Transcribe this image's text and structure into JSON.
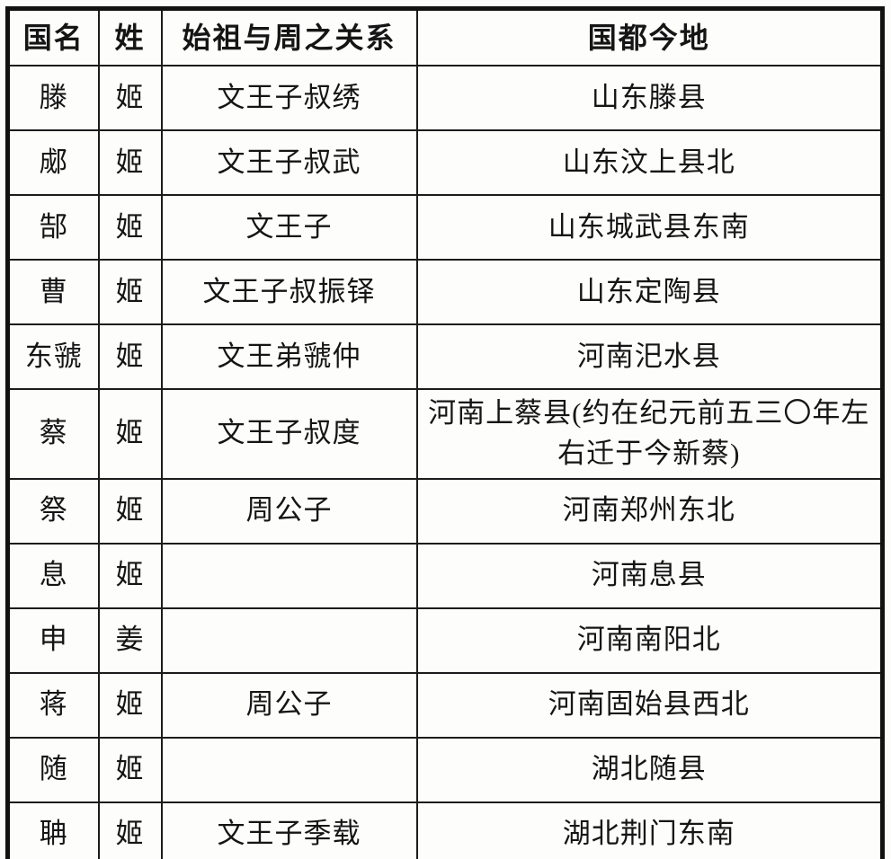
{
  "table": {
    "title_semantic": "zhou-feudal-states-table",
    "headers": [
      "国名",
      "姓",
      "始祖与周之关系",
      "国都今地"
    ],
    "rows": [
      {
        "state": "滕",
        "surname": "姬",
        "relation": "文王子叔绣",
        "capital": "山东滕县"
      },
      {
        "state": "郕",
        "surname": "姬",
        "relation": "文王子叔武",
        "capital": "山东汶上县北"
      },
      {
        "state": "郜",
        "surname": "姬",
        "relation": "文王子",
        "capital": "山东城武县东南"
      },
      {
        "state": "曹",
        "surname": "姬",
        "relation": "文王子叔振铎",
        "capital": "山东定陶县"
      },
      {
        "state": "东虢",
        "surname": "姬",
        "relation": "文王弟虢仲",
        "capital": "河南汜水县"
      },
      {
        "state": "蔡",
        "surname": "姬",
        "relation": "文王子叔度",
        "capital": "河南上蔡县(约在纪元前五三〇年左右迁于今新蔡)"
      },
      {
        "state": "祭",
        "surname": "姬",
        "relation": "周公子",
        "capital": "河南郑州东北"
      },
      {
        "state": "息",
        "surname": "姬",
        "relation": "",
        "capital": "河南息县"
      },
      {
        "state": "申",
        "surname": "姜",
        "relation": "",
        "capital": "河南南阳北"
      },
      {
        "state": "蒋",
        "surname": "姬",
        "relation": "周公子",
        "capital": "河南固始县西北"
      },
      {
        "state": "随",
        "surname": "姬",
        "relation": "",
        "capital": "湖北随县"
      },
      {
        "state": "聃",
        "surname": "姬",
        "relation": "文王子季载",
        "capital": "湖北荆门东南"
      }
    ]
  },
  "colors": {
    "border": "#1c1c1c",
    "outer_border": "#111111",
    "text": "#151515",
    "background": "#fcfcfa"
  }
}
